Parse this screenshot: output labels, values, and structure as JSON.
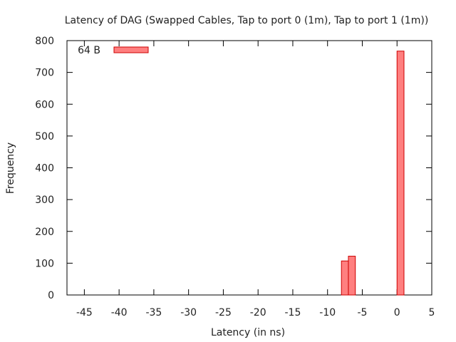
{
  "chart_data": {
    "type": "bar",
    "title": "Latency of DAG (Swapped Cables, Tap to port 0 (1m), Tap to port 1 (1m))",
    "xlabel": "Latency (in ns)",
    "ylabel": "Frequency",
    "xlim": [
      -47.5,
      5
    ],
    "ylim": [
      0,
      800
    ],
    "xticks": [
      "-45",
      "-40",
      "-35",
      "-30",
      "-25",
      "-20",
      "-15",
      "-10",
      "-5",
      "0",
      "5"
    ],
    "yticks": [
      "0",
      "100",
      "200",
      "300",
      "400",
      "500",
      "600",
      "700",
      "800"
    ],
    "bin_width": 1,
    "series": [
      {
        "name": "64 B",
        "color": "#ff7f7f",
        "edge_color": "#cc0000",
        "bins": [
          {
            "x": -7.5,
            "value": 107
          },
          {
            "x": -6.5,
            "value": 122
          },
          {
            "x": 0.5,
            "value": 767
          }
        ]
      }
    ],
    "legend_position": "top-left",
    "grid": false
  }
}
